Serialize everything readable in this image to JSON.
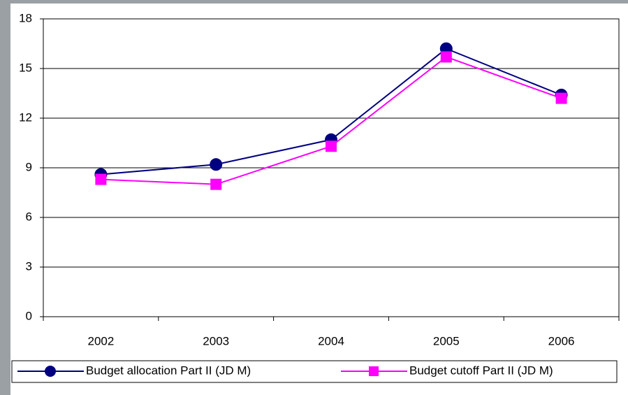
{
  "chart_data": {
    "type": "line",
    "categories": [
      "2002",
      "2003",
      "2004",
      "2005",
      "2006"
    ],
    "series": [
      {
        "name": "Budget allocation Part II (JD M)",
        "color": "#000080",
        "marker": "circle",
        "values": [
          8.6,
          9.2,
          10.7,
          16.2,
          13.4
        ]
      },
      {
        "name": "Budget cutoff Part II (JD M)",
        "color": "#ff00ff",
        "marker": "square",
        "values": [
          8.3,
          8.0,
          10.3,
          15.7,
          13.2
        ]
      }
    ],
    "ylim": [
      0,
      18
    ],
    "yticks": [
      0,
      3,
      6,
      9,
      12,
      15,
      18
    ],
    "grid": true,
    "legend": "bottom"
  }
}
